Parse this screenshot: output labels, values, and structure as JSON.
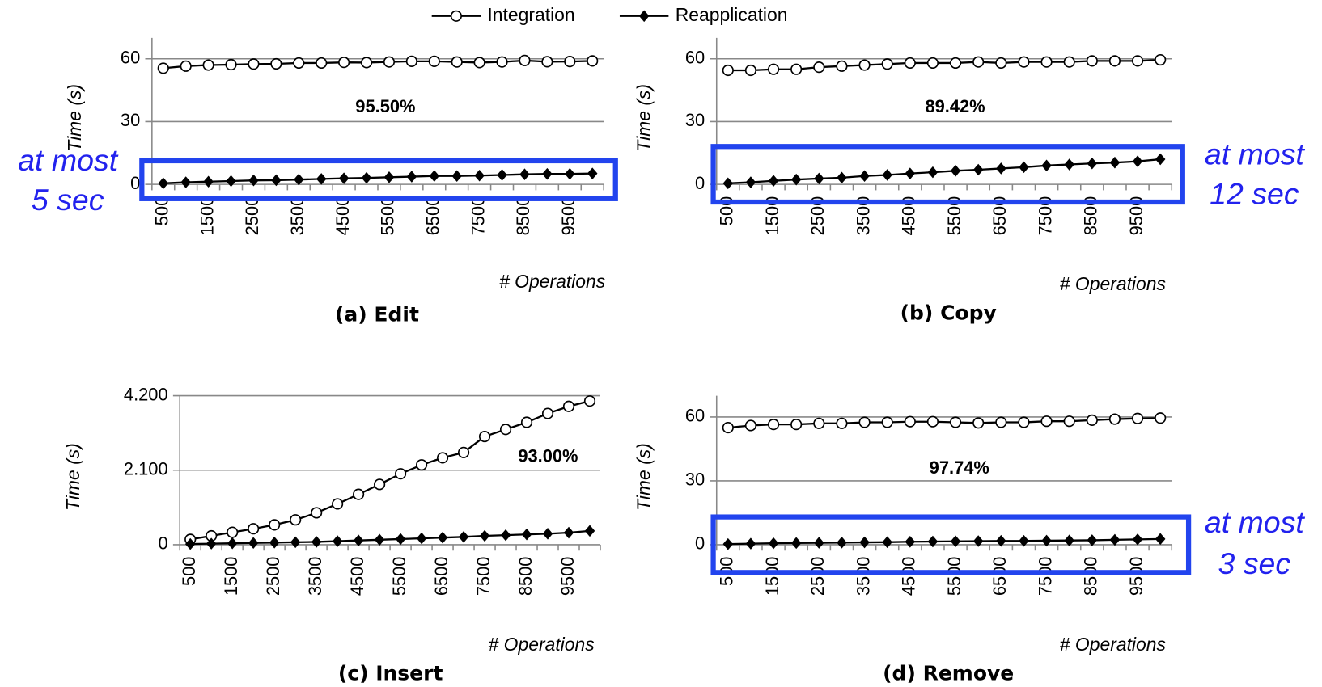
{
  "chart_data": [
    {
      "type": "line",
      "title": "(a) Edit",
      "ylabel": "Time (s)",
      "xlabel": "# Operations",
      "annotation_pct": "95.50%",
      "annotation": [
        "at most",
        "5 sec"
      ],
      "categories": [
        500,
        null,
        1500,
        null,
        2500,
        null,
        3500,
        null,
        4500,
        null,
        5500,
        null,
        6500,
        null,
        7500,
        null,
        8500,
        null,
        9500,
        null
      ],
      "ylim": [
        0,
        70
      ],
      "yticks": [
        0,
        30,
        60
      ],
      "grid": true,
      "series": [
        {
          "name": "Integration",
          "color": "#000000",
          "marker": "circle",
          "values": [
            55.5,
            56.5,
            57,
            57.2,
            57.5,
            57.6,
            58,
            58,
            58.3,
            58.2,
            58.5,
            58.8,
            58.8,
            58.5,
            58.2,
            58.5,
            59.2,
            58.6,
            58.7,
            59
          ]
        },
        {
          "name": "Reapplication",
          "color": "#000000",
          "marker": "diamond",
          "values": [
            0.5,
            1,
            1.3,
            1.6,
            1.9,
            2,
            2.3,
            2.6,
            2.9,
            3.1,
            3.4,
            3.7,
            4,
            4,
            4.2,
            4.5,
            4.8,
            5,
            5,
            5.2
          ]
        }
      ]
    },
    {
      "type": "line",
      "title": "(b) Copy",
      "ylabel": "Time (s)",
      "xlabel": "# Operations",
      "annotation_pct": "89.42%",
      "annotation": [
        "at most",
        "12 sec"
      ],
      "categories": [
        500,
        null,
        1500,
        null,
        2500,
        null,
        3500,
        null,
        4500,
        null,
        5500,
        null,
        6500,
        null,
        7500,
        null,
        8500,
        null,
        9500,
        null
      ],
      "ylim": [
        0,
        70
      ],
      "yticks": [
        0,
        30,
        60
      ],
      "grid": true,
      "series": [
        {
          "name": "Integration",
          "color": "#000000",
          "marker": "circle",
          "values": [
            54.5,
            54.5,
            55,
            55,
            56,
            56.5,
            57,
            57.5,
            58,
            58,
            58,
            58.5,
            58,
            58.5,
            58.5,
            58.5,
            59,
            59,
            59,
            59.5
          ]
        },
        {
          "name": "Reapplication",
          "color": "#000000",
          "marker": "diamond",
          "values": [
            0.5,
            1,
            1.7,
            2.3,
            2.8,
            3.2,
            4,
            4.5,
            5.2,
            5.8,
            6.5,
            7,
            7.6,
            8.2,
            9,
            9.5,
            10,
            10.4,
            11,
            12
          ]
        }
      ]
    },
    {
      "type": "line",
      "title": "(c) Insert",
      "ylabel": "Time (s)",
      "xlabel": "# Operations",
      "annotation_pct": "93.00%",
      "categories": [
        500,
        null,
        1500,
        null,
        2500,
        null,
        3500,
        null,
        4500,
        null,
        5500,
        null,
        6500,
        null,
        7500,
        null,
        8500,
        null,
        9500,
        null
      ],
      "ylim": [
        0,
        4200
      ],
      "yticks": [
        0,
        {
          "value": 2100,
          "label": "2.100"
        },
        {
          "value": 4200,
          "label": "4.200"
        }
      ],
      "grid": true,
      "series": [
        {
          "name": "Integration",
          "color": "#000000",
          "marker": "circle",
          "values": [
            150,
            250,
            350,
            450,
            560,
            700,
            900,
            1150,
            1420,
            1700,
            2000,
            2250,
            2450,
            2600,
            3050,
            3250,
            3450,
            3700,
            3900,
            4050
          ]
        },
        {
          "name": "Reapplication",
          "color": "#000000",
          "marker": "diamond",
          "values": [
            20,
            30,
            40,
            50,
            60,
            70,
            80,
            100,
            120,
            140,
            160,
            180,
            200,
            220,
            250,
            270,
            290,
            310,
            340,
            390
          ]
        }
      ]
    },
    {
      "type": "line",
      "title": "(d) Remove",
      "ylabel": "Time (s)",
      "xlabel": "# Operations",
      "annotation_pct": "97.74%",
      "annotation": [
        "at most",
        "3 sec"
      ],
      "categories": [
        500,
        null,
        1500,
        null,
        2500,
        null,
        3500,
        null,
        4500,
        null,
        5500,
        null,
        6500,
        null,
        7500,
        null,
        8500,
        null,
        9500,
        null
      ],
      "ylim": [
        0,
        70
      ],
      "yticks": [
        0,
        30,
        60
      ],
      "grid": true,
      "series": [
        {
          "name": "Integration",
          "color": "#000000",
          "marker": "circle",
          "values": [
            55,
            56,
            56.5,
            56.5,
            57,
            57,
            57.5,
            57.5,
            57.8,
            57.8,
            57.5,
            57.2,
            57.5,
            57.5,
            58,
            58,
            58.5,
            59,
            59.3,
            59.5
          ]
        },
        {
          "name": "Reapplication",
          "color": "#000000",
          "marker": "diamond",
          "values": [
            0.3,
            0.5,
            0.7,
            0.8,
            0.9,
            1,
            1.1,
            1.2,
            1.4,
            1.5,
            1.6,
            1.7,
            1.8,
            1.8,
            1.9,
            2,
            2.1,
            2.3,
            2.5,
            2.7
          ]
        }
      ]
    }
  ]
}
